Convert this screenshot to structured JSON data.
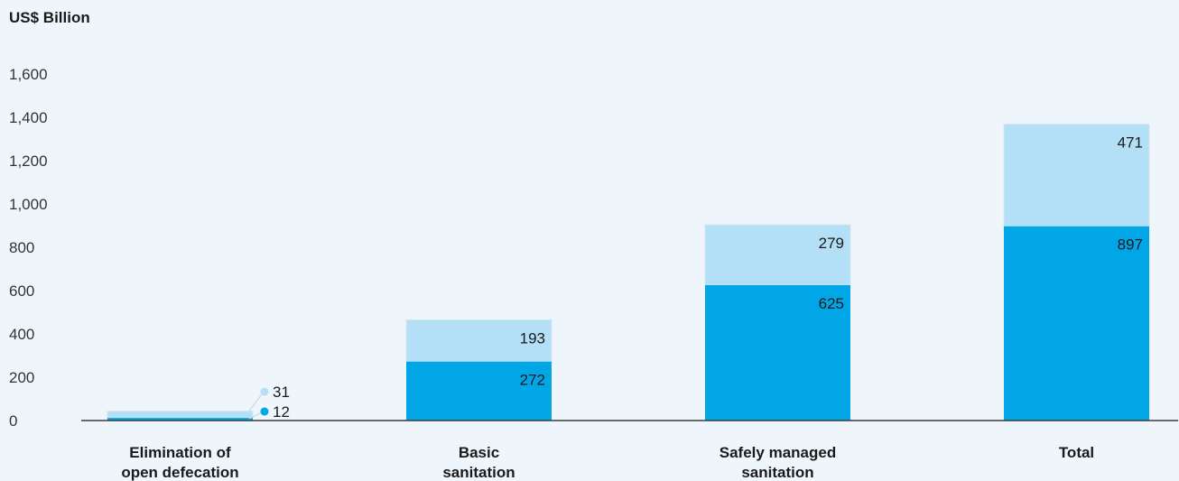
{
  "chart_data": {
    "type": "bar",
    "stacked": true,
    "ylabel": "US$ Billion",
    "ylim": [
      0,
      1600
    ],
    "yticks": [
      "0",
      "200",
      "400",
      "600",
      "800",
      "1,000",
      "1,200",
      "1,400",
      "1,600"
    ],
    "categories": [
      [
        "Elimination of",
        "open defecation"
      ],
      [
        "Basic",
        "sanitation"
      ],
      [
        "Safely managed",
        "sanitation"
      ],
      [
        "Total"
      ]
    ],
    "series": [
      {
        "values": [
          12,
          272,
          625,
          897
        ],
        "labels": [
          "12",
          "272",
          "625",
          "897"
        ],
        "color": "#00a6e6"
      },
      {
        "values": [
          31,
          193,
          279,
          471
        ],
        "labels": [
          "31",
          "193",
          "279",
          "471"
        ],
        "color": "#b3e0f7"
      }
    ],
    "grid": false,
    "legend": "none"
  }
}
